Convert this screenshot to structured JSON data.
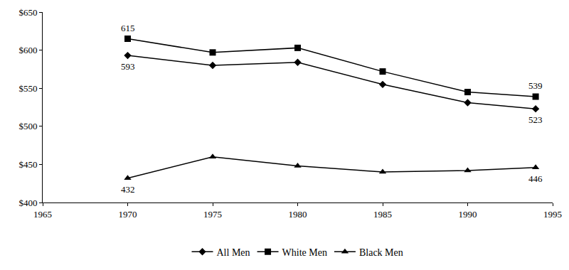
{
  "chart_data": {
    "type": "line",
    "x": [
      1970,
      1975,
      1980,
      1985,
      1990,
      1994
    ],
    "series": [
      {
        "name": "All Men",
        "color": "#000000",
        "marker": "diamond",
        "values": [
          593,
          580,
          584,
          555,
          531,
          523
        ]
      },
      {
        "name": "White Men",
        "color": "#000000",
        "marker": "square",
        "values": [
          615,
          597,
          603,
          572,
          545,
          539
        ]
      },
      {
        "name": "Black Men",
        "color": "#000000",
        "marker": "triangle-up",
        "values": [
          432,
          460,
          448,
          440,
          442,
          446
        ]
      }
    ],
    "annotations": [
      {
        "x": 1970,
        "y": 615,
        "text": "615"
      },
      {
        "x": 1970,
        "y": 593,
        "text": "593"
      },
      {
        "x": 1994,
        "y": 539,
        "text": "539"
      },
      {
        "x": 1994,
        "y": 523,
        "text": "523"
      },
      {
        "x": 1970,
        "y": 432,
        "text": "432"
      },
      {
        "x": 1994,
        "y": 446,
        "text": "446"
      }
    ],
    "xlim": [
      1965,
      1995
    ],
    "xticks": [
      1965,
      1970,
      1975,
      1980,
      1985,
      1990,
      1995
    ],
    "ylim": [
      400,
      650
    ],
    "yticks": [
      {
        "value": 400,
        "label": "$400"
      },
      {
        "value": 450,
        "label": "$450"
      },
      {
        "value": 500,
        "label": "$500"
      },
      {
        "value": 550,
        "label": "$550"
      },
      {
        "value": 600,
        "label": "$600"
      },
      {
        "value": 650,
        "label": "$650"
      }
    ],
    "grid": false,
    "legend": "bottom"
  }
}
